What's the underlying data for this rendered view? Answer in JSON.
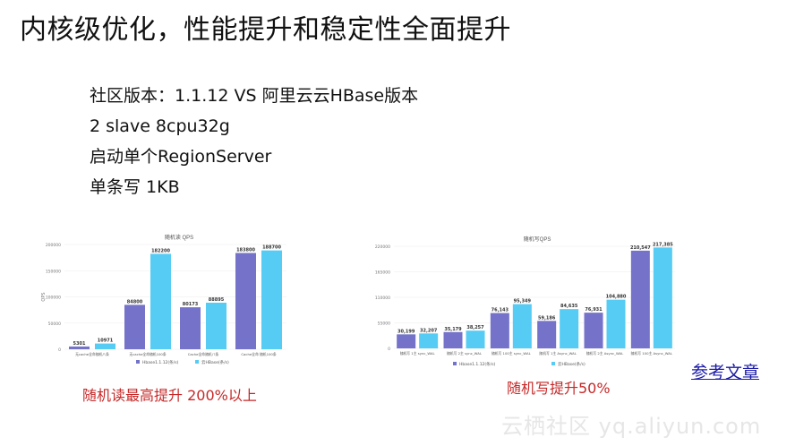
{
  "slide": {
    "title": "内核级优化，性能提升和稳定性全面提升",
    "bullets": [
      "社区版本：1.1.12  VS 阿里云云HBase版本",
      "2 slave 8cpu32g",
      "启动单个RegionServer",
      "单条写 1KB"
    ],
    "read_caption": "随机读最高提升 200%以上",
    "write_caption": "随机写提升50%",
    "reference_link": "参考文章",
    "watermark": "云栖社区 yq.aliyun.com"
  },
  "colors": {
    "series1": "#7472c9",
    "series2": "#56ccf5",
    "caption": "#c62828",
    "link": "#1a1aa6"
  },
  "chart_data": [
    {
      "type": "bar",
      "title": "随机读 QPS",
      "ylabel": "QPS",
      "ylim": [
        0,
        200000
      ],
      "yticks": [
        "0",
        "50000",
        "100000",
        "150000",
        "200000"
      ],
      "categories": [
        "无cache全命随机八条",
        "无cache全命随机100条",
        "Cache全命随机八条",
        "Cache全命 随机100条"
      ],
      "series": [
        {
          "name": "Hbase1.1.12(条/s)",
          "values": [
            5301,
            84800,
            80173,
            183800
          ]
        },
        {
          "name": "云HBase(条/s)",
          "values": [
            10971,
            182200,
            88895,
            188700
          ]
        }
      ],
      "labels": [
        [
          "5301",
          "84800",
          "80173",
          "183800"
        ],
        [
          "10971",
          "182200",
          "88895",
          "188700"
        ]
      ]
    },
    {
      "type": "bar",
      "title": "随机写QPS",
      "ylim": [
        0,
        220000
      ],
      "yticks": [
        "0",
        "55000",
        "110000",
        "165000",
        "220000"
      ],
      "categories": [
        "随机写 1主 sync_WAL",
        "随机写 2主 sync_WAL",
        "随机写 100主 sync_WAL",
        "随机写 1主 Async_WAL",
        "随机写 2主 Async_WAL",
        "随机写 100主 Async_WAL"
      ],
      "series": [
        {
          "name": "Hbase1.1.12(条/s)",
          "values": [
            30199,
            35179,
            76143,
            59186,
            76931,
            210547
          ]
        },
        {
          "name": "云HBase(条/s)",
          "values": [
            32207,
            38257,
            95349,
            84635,
            104880,
            217385
          ]
        }
      ],
      "labels": [
        [
          "30,199",
          "35,179",
          "76,143",
          "59,186",
          "76,931",
          "210,547"
        ],
        [
          "32,207",
          "38,257",
          "95,349",
          "84,635",
          "104,880",
          "217,385"
        ]
      ]
    }
  ]
}
